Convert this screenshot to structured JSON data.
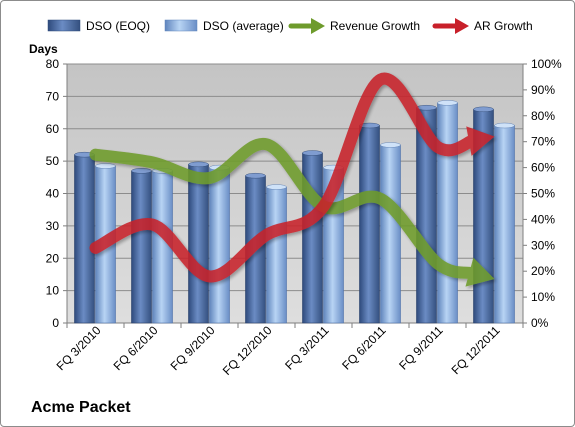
{
  "company": "Acme Packet",
  "chart_data": {
    "type": "bar",
    "categories": [
      "FQ 3/2010",
      "FQ 6/2010",
      "FQ 9/2010",
      "FQ 12/2010",
      "FQ 3/2011",
      "FQ 6/2011",
      "FQ 9/2011",
      "FQ 12/2011"
    ],
    "ylabel": "Days",
    "ylim": [
      0,
      80
    ],
    "yticks": [
      0,
      10,
      20,
      30,
      40,
      50,
      60,
      70,
      80
    ],
    "y2lim": [
      0,
      100
    ],
    "y2ticks": [
      "0%",
      "10%",
      "20%",
      "30%",
      "40%",
      "50%",
      "60%",
      "70%",
      "80%",
      "90%",
      "100%"
    ],
    "grid": true,
    "legend_position": "top",
    "series": [
      {
        "name": "DSO (EOQ)",
        "type": "bar",
        "axis": "left",
        "color": "#4a6aa0",
        "values": [
          52,
          47,
          49,
          45.5,
          52.5,
          61,
          66.5,
          66
        ]
      },
      {
        "name": "DSO (average)",
        "type": "bar",
        "axis": "left",
        "color": "#8cb0e0",
        "values": [
          48.5,
          47,
          48,
          42,
          48,
          55,
          68,
          61
        ]
      },
      {
        "name": "Revenue Growth",
        "type": "line",
        "axis": "right",
        "color": "#6e9b2c",
        "values": [
          65,
          62,
          56,
          69,
          45,
          48,
          23,
          17
        ]
      },
      {
        "name": "AR Growth",
        "type": "line",
        "axis": "right",
        "color": "#c8202a",
        "values": [
          29,
          38,
          18,
          34,
          45,
          94,
          68,
          72
        ]
      }
    ]
  }
}
